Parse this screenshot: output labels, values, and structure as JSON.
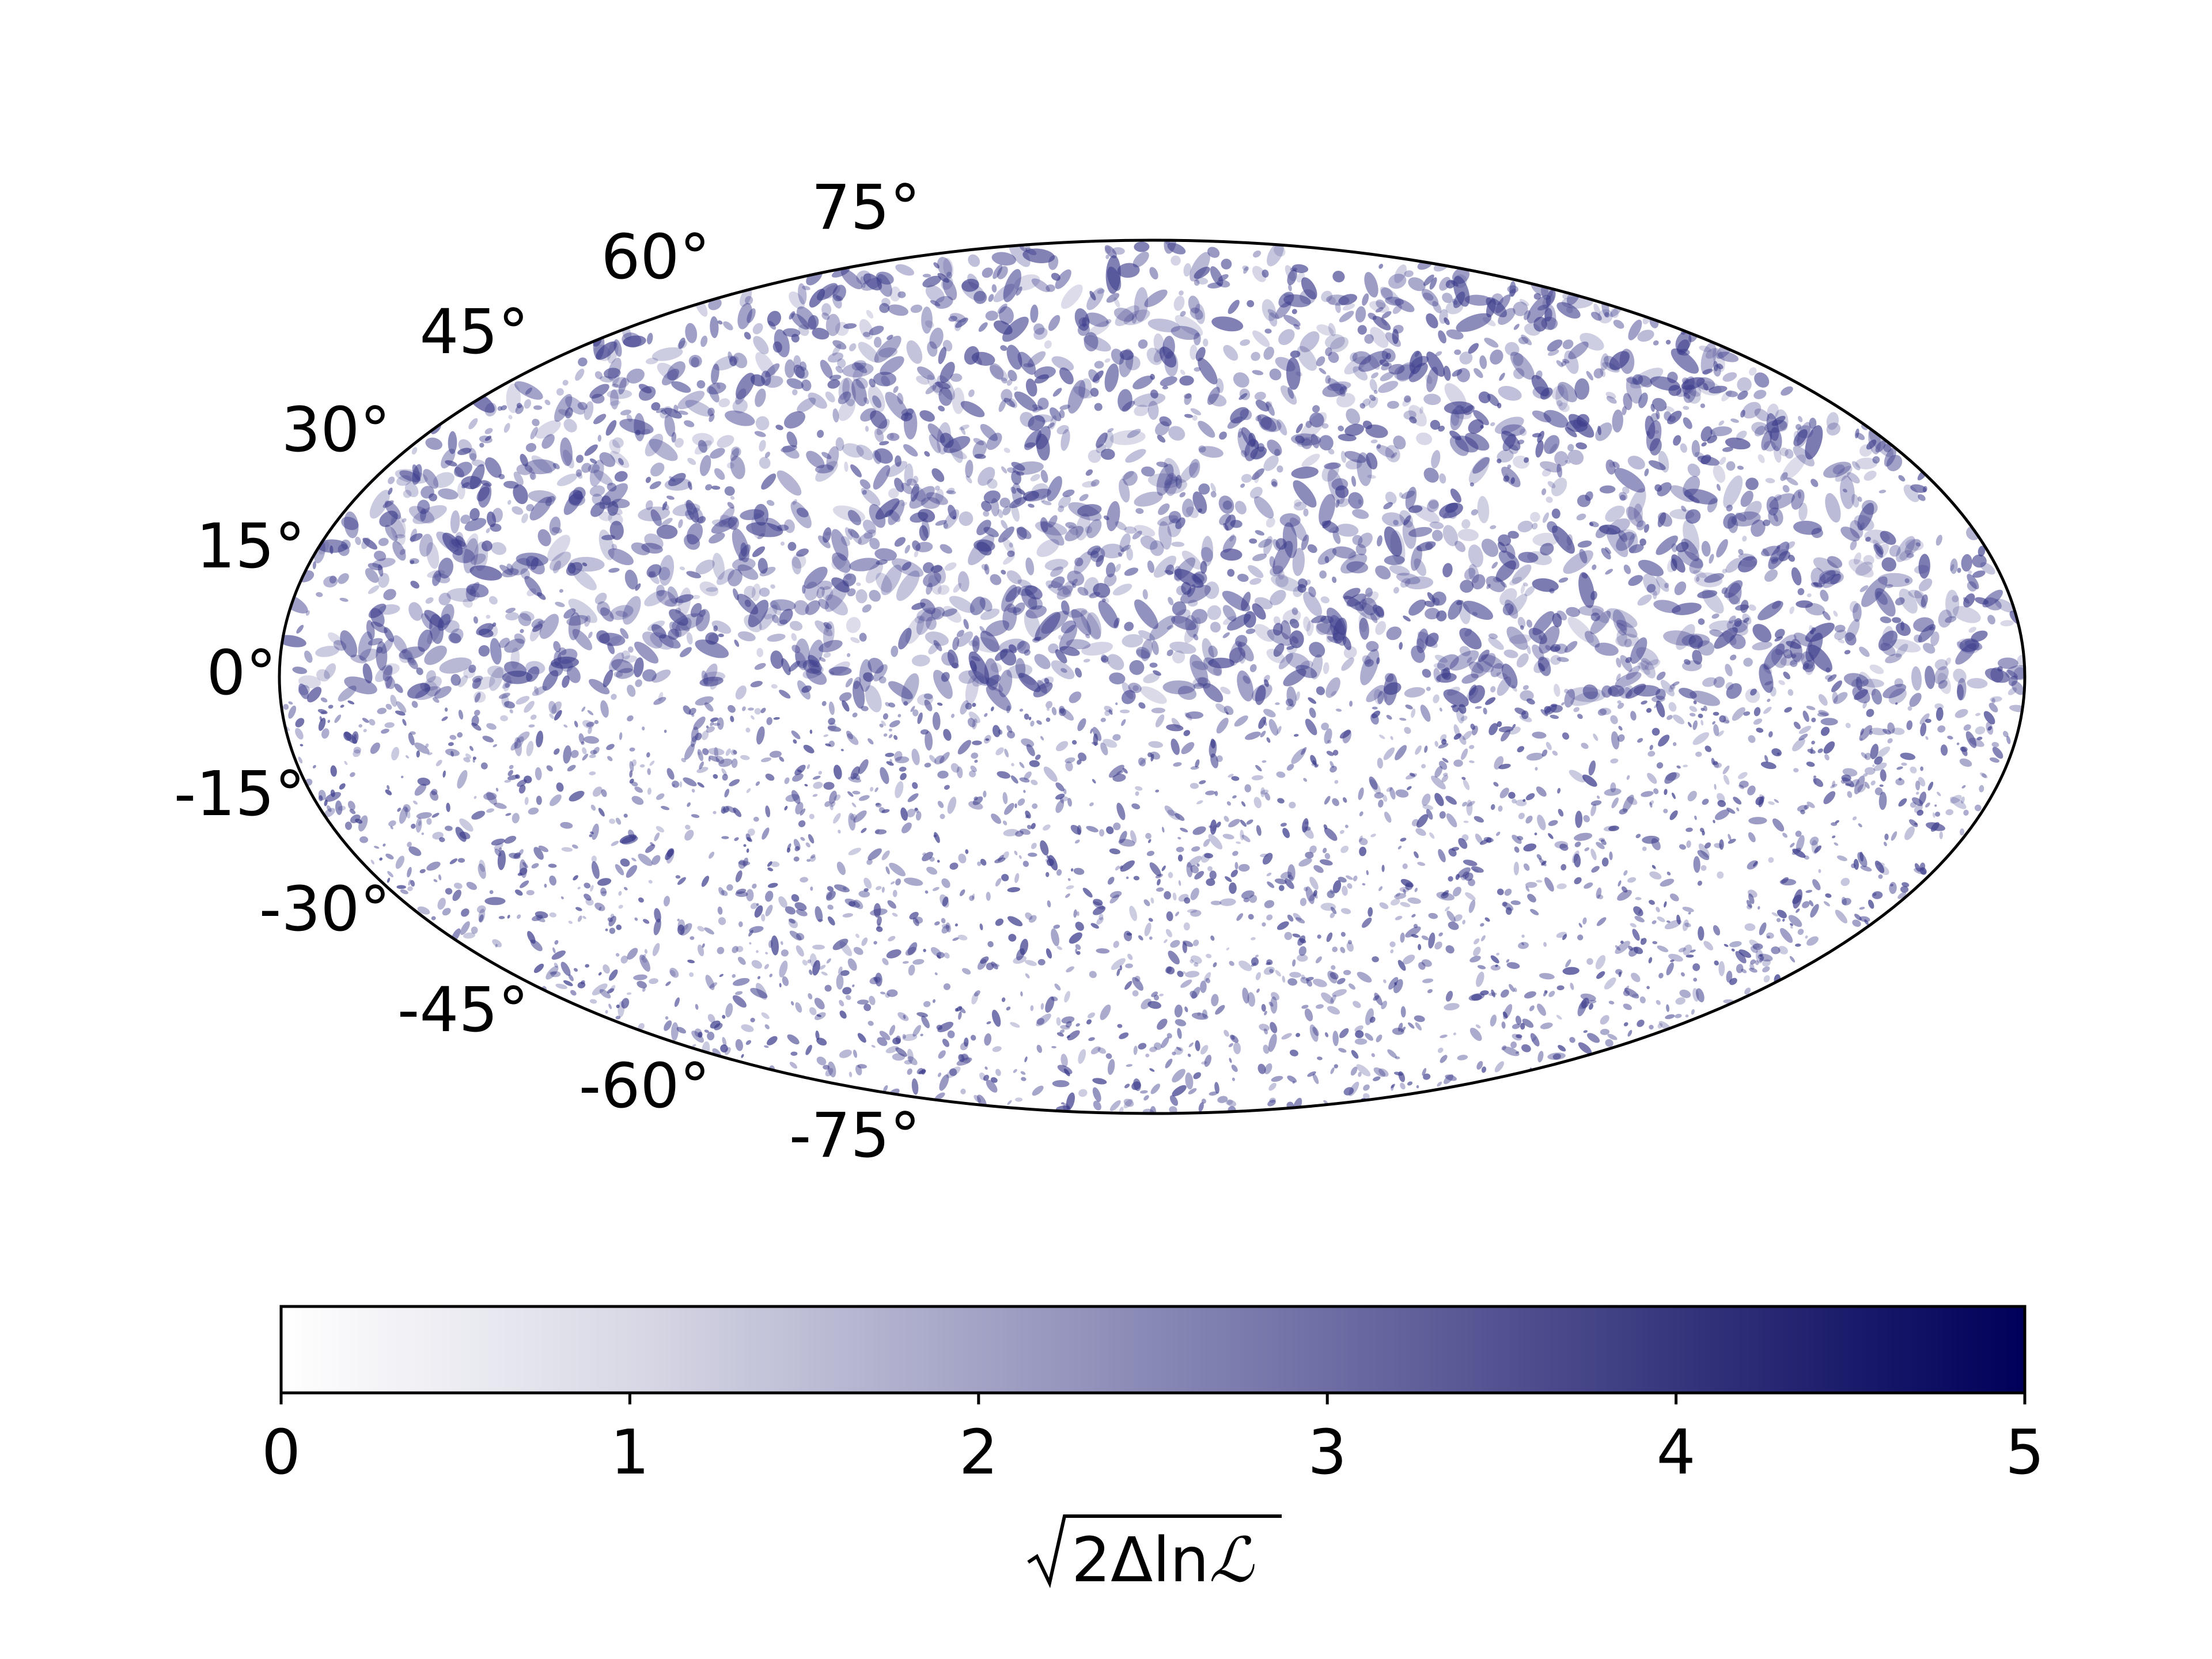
{
  "chart_data": {
    "type": "heatmap",
    "projection": "Mollweide (all-sky)",
    "latitude_tick_labels": [
      "75°",
      "60°",
      "45°",
      "30°",
      "15°",
      "0°",
      "-15°",
      "-30°",
      "-45°",
      "-60°",
      "-75°"
    ],
    "latitude_values": [
      75,
      60,
      45,
      30,
      15,
      0,
      -15,
      -30,
      -45,
      -60,
      -75
    ],
    "grid": false,
    "colorbar": {
      "orientation": "horizontal",
      "placement": "bottom",
      "range": [
        0,
        5
      ],
      "tick_values": [
        0,
        1,
        2,
        3,
        4,
        5
      ],
      "tick_labels": [
        "0",
        "1",
        "2",
        "3",
        "4",
        "5"
      ],
      "label_prefix": "2Δln",
      "label_symbol": "ℒ",
      "colormap": [
        "#ffffff",
        "#00005a"
      ]
    },
    "map_value_description_range": [
      0,
      5
    ]
  }
}
